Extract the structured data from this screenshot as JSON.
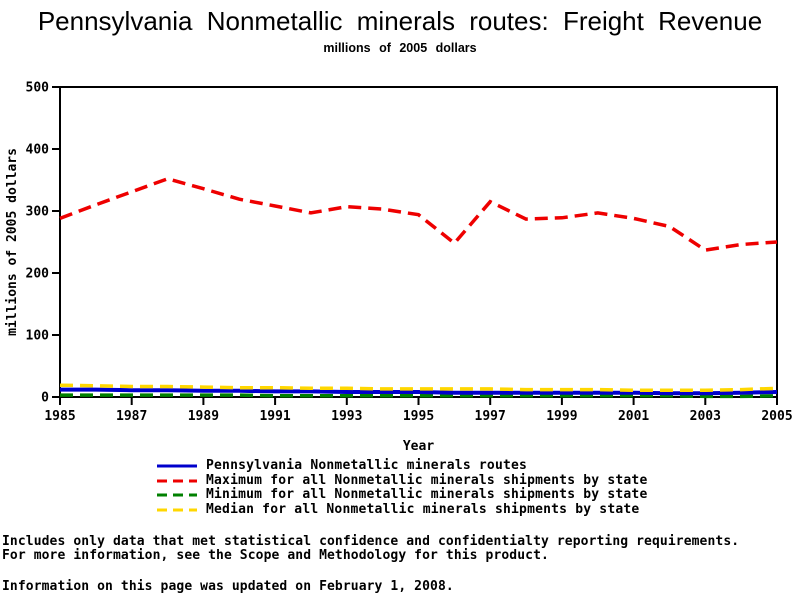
{
  "page": {
    "title": "Pennsylvania Nonmetallic minerals routes: Freight Revenue",
    "subtitle": "millions of 2005 dollars",
    "footnotes": {
      "line1": "Includes only data that met statistical confidence and confidentialty reporting requirements.",
      "line2": "For more information, see the Scope and Methodology for this product.",
      "line3": "Information on this page was updated on February 1, 2008."
    }
  },
  "chart_data": {
    "type": "line",
    "title": "Pennsylvania Nonmetallic minerals routes: Freight Revenue",
    "subtitle": "millions of 2005 dollars",
    "xlabel": "Year",
    "ylabel": "millions of 2005 dollars",
    "xlim": [
      1985,
      2005
    ],
    "ylim": [
      0,
      500
    ],
    "yticks": [
      0,
      100,
      200,
      300,
      400,
      500
    ],
    "xticks": [
      1985,
      1987,
      1989,
      1991,
      1993,
      1995,
      1997,
      1999,
      2001,
      2003,
      2005
    ],
    "grid": false,
    "legend_position": "bottom",
    "axis_color": "#000000",
    "x": [
      1985,
      1986,
      1987,
      1988,
      1989,
      1990,
      1991,
      1992,
      1993,
      1994,
      1995,
      1996,
      1997,
      1998,
      1999,
      2000,
      2001,
      2002,
      2003,
      2004,
      2005
    ],
    "series": [
      {
        "name": "Pennsylvania Nonmetallic minerals routes",
        "color": "#0000cc",
        "dash": "solid",
        "values": [
          12,
          12,
          11,
          11,
          10,
          10,
          9,
          9,
          8,
          8,
          8,
          7,
          7,
          7,
          7,
          7,
          7,
          6,
          6,
          7,
          8
        ]
      },
      {
        "name": "Maximum for all Nonmetallic minerals shipments by state",
        "color": "#ee0000",
        "dash": "dashed",
        "values": [
          288,
          310,
          331,
          352,
          336,
          319,
          308,
          297,
          307,
          303,
          294,
          248,
          315,
          287,
          289,
          297,
          288,
          275,
          237,
          246,
          250
        ]
      },
      {
        "name": "Minimum for all Nonmetallic minerals shipments by state",
        "color": "#008000",
        "dash": "dashed",
        "values": [
          3,
          3,
          3,
          3,
          3,
          3,
          2,
          2,
          2,
          2,
          2,
          2,
          2,
          2,
          2,
          2,
          2,
          2,
          1,
          1,
          2
        ]
      },
      {
        "name": "Median for all Nonmetallic minerals shipments by state",
        "color": "#ffd700",
        "dash": "dashed",
        "values": [
          19,
          18,
          17,
          17,
          16,
          15,
          15,
          14,
          14,
          13,
          13,
          13,
          13,
          12,
          12,
          12,
          11,
          11,
          11,
          12,
          14
        ]
      }
    ]
  }
}
